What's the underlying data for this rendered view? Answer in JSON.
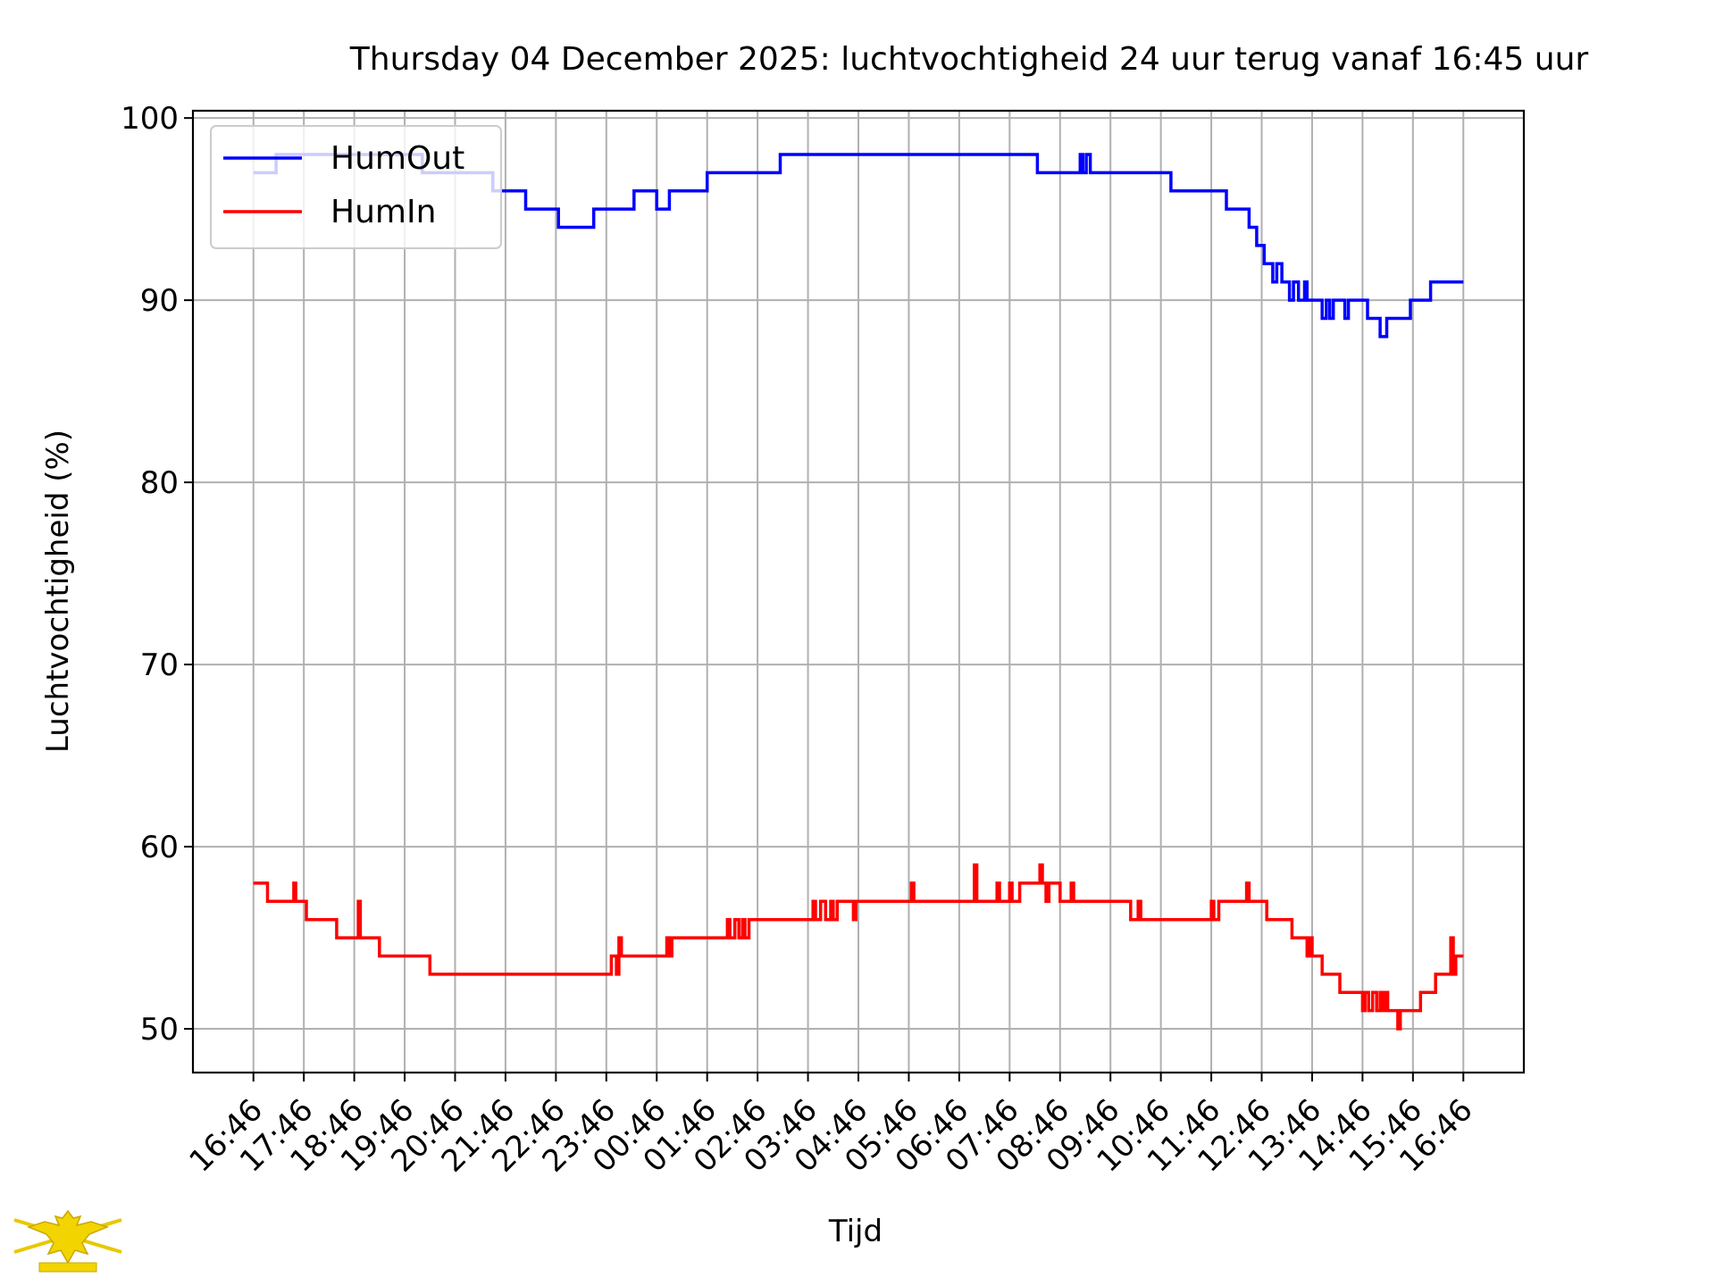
{
  "chart_data": {
    "type": "line",
    "title": "Thursday 04 December 2025: luchtvochtigheid 24 uur terug vanaf 16:45 uur",
    "xlabel": "Tijd",
    "ylabel": "Luchtvochtigheid (%)",
    "x_tick_labels": [
      "16:46",
      "17:46",
      "18:46",
      "19:46",
      "20:46",
      "21:46",
      "22:46",
      "23:46",
      "00:46",
      "01:46",
      "02:46",
      "03:46",
      "04:46",
      "05:46",
      "06:46",
      "07:46",
      "08:46",
      "09:46",
      "10:46",
      "11:46",
      "12:46",
      "13:46",
      "14:46",
      "15:46",
      "16:46"
    ],
    "x_unit": "hours since 16:46",
    "xlim": [
      -1.2,
      25.2
    ],
    "ylim": [
      47.6,
      100.4
    ],
    "y_ticks": [
      50,
      60,
      70,
      80,
      90,
      100
    ],
    "grid": true,
    "legend_position": "upper-left",
    "series": [
      {
        "name": "HumOut",
        "color": "#0000ff",
        "points": [
          [
            0.0,
            97
          ],
          [
            0.45,
            97
          ],
          [
            0.45,
            98
          ],
          [
            3.35,
            98
          ],
          [
            3.35,
            97
          ],
          [
            4.75,
            97
          ],
          [
            4.75,
            96
          ],
          [
            5.4,
            96
          ],
          [
            5.4,
            95
          ],
          [
            6.05,
            95
          ],
          [
            6.05,
            94
          ],
          [
            6.75,
            94
          ],
          [
            6.75,
            95
          ],
          [
            7.55,
            95
          ],
          [
            7.55,
            96
          ],
          [
            8.0,
            96
          ],
          [
            8.0,
            95
          ],
          [
            8.25,
            95
          ],
          [
            8.25,
            96
          ],
          [
            9.0,
            96
          ],
          [
            9.0,
            97
          ],
          [
            10.45,
            97
          ],
          [
            10.45,
            98
          ],
          [
            15.55,
            98
          ],
          [
            15.55,
            97
          ],
          [
            16.4,
            97
          ],
          [
            16.4,
            98
          ],
          [
            16.45,
            98
          ],
          [
            16.45,
            97
          ],
          [
            16.52,
            97
          ],
          [
            16.52,
            98
          ],
          [
            16.6,
            98
          ],
          [
            16.6,
            97
          ],
          [
            18.2,
            97
          ],
          [
            18.2,
            96
          ],
          [
            19.3,
            96
          ],
          [
            19.3,
            95
          ],
          [
            19.75,
            95
          ],
          [
            19.75,
            94
          ],
          [
            19.9,
            94
          ],
          [
            19.9,
            93
          ],
          [
            20.05,
            93
          ],
          [
            20.05,
            92
          ],
          [
            20.22,
            92
          ],
          [
            20.22,
            91
          ],
          [
            20.3,
            91
          ],
          [
            20.3,
            92
          ],
          [
            20.4,
            92
          ],
          [
            20.4,
            91
          ],
          [
            20.55,
            91
          ],
          [
            20.55,
            90
          ],
          [
            20.63,
            90
          ],
          [
            20.63,
            91
          ],
          [
            20.73,
            91
          ],
          [
            20.73,
            90
          ],
          [
            20.85,
            90
          ],
          [
            20.85,
            91
          ],
          [
            20.9,
            91
          ],
          [
            20.9,
            90
          ],
          [
            21.2,
            90
          ],
          [
            21.2,
            89
          ],
          [
            21.28,
            89
          ],
          [
            21.28,
            90
          ],
          [
            21.35,
            90
          ],
          [
            21.35,
            89
          ],
          [
            21.42,
            89
          ],
          [
            21.42,
            90
          ],
          [
            21.65,
            90
          ],
          [
            21.65,
            89
          ],
          [
            21.72,
            89
          ],
          [
            21.72,
            90
          ],
          [
            22.1,
            90
          ],
          [
            22.1,
            89
          ],
          [
            22.35,
            89
          ],
          [
            22.35,
            88
          ],
          [
            22.48,
            88
          ],
          [
            22.48,
            89
          ],
          [
            22.95,
            89
          ],
          [
            22.95,
            90
          ],
          [
            23.35,
            90
          ],
          [
            23.35,
            91
          ],
          [
            24.0,
            91
          ]
        ]
      },
      {
        "name": "HumIn",
        "color": "#ff0000",
        "points": [
          [
            0.0,
            58
          ],
          [
            0.28,
            58
          ],
          [
            0.28,
            57
          ],
          [
            0.8,
            57
          ],
          [
            0.8,
            58
          ],
          [
            0.84,
            58
          ],
          [
            0.84,
            57
          ],
          [
            1.05,
            57
          ],
          [
            1.05,
            56
          ],
          [
            1.65,
            56
          ],
          [
            1.65,
            55
          ],
          [
            2.08,
            55
          ],
          [
            2.08,
            57
          ],
          [
            2.12,
            57
          ],
          [
            2.12,
            55
          ],
          [
            2.5,
            55
          ],
          [
            2.5,
            54
          ],
          [
            3.5,
            54
          ],
          [
            3.5,
            53
          ],
          [
            7.1,
            53
          ],
          [
            7.1,
            54
          ],
          [
            7.2,
            54
          ],
          [
            7.2,
            53
          ],
          [
            7.25,
            53
          ],
          [
            7.25,
            55
          ],
          [
            7.3,
            55
          ],
          [
            7.3,
            54
          ],
          [
            8.2,
            54
          ],
          [
            8.2,
            55
          ],
          [
            8.25,
            55
          ],
          [
            8.25,
            54
          ],
          [
            8.3,
            54
          ],
          [
            8.3,
            55
          ],
          [
            9.4,
            55
          ],
          [
            9.4,
            56
          ],
          [
            9.45,
            56
          ],
          [
            9.45,
            55
          ],
          [
            9.55,
            55
          ],
          [
            9.55,
            56
          ],
          [
            9.63,
            56
          ],
          [
            9.63,
            55
          ],
          [
            9.7,
            55
          ],
          [
            9.7,
            56
          ],
          [
            9.75,
            56
          ],
          [
            9.75,
            55
          ],
          [
            9.83,
            55
          ],
          [
            9.83,
            56
          ],
          [
            11.1,
            56
          ],
          [
            11.1,
            57
          ],
          [
            11.15,
            57
          ],
          [
            11.15,
            56
          ],
          [
            11.25,
            56
          ],
          [
            11.25,
            57
          ],
          [
            11.35,
            57
          ],
          [
            11.35,
            56
          ],
          [
            11.45,
            56
          ],
          [
            11.45,
            57
          ],
          [
            11.5,
            57
          ],
          [
            11.5,
            56
          ],
          [
            11.58,
            56
          ],
          [
            11.58,
            57
          ],
          [
            11.9,
            57
          ],
          [
            11.9,
            56
          ],
          [
            11.95,
            56
          ],
          [
            11.95,
            57
          ],
          [
            13.05,
            57
          ],
          [
            13.05,
            58
          ],
          [
            13.1,
            58
          ],
          [
            13.1,
            57
          ],
          [
            14.3,
            57
          ],
          [
            14.3,
            59
          ],
          [
            14.35,
            59
          ],
          [
            14.35,
            57
          ],
          [
            14.75,
            57
          ],
          [
            14.75,
            58
          ],
          [
            14.8,
            58
          ],
          [
            14.8,
            57
          ],
          [
            15.0,
            57
          ],
          [
            15.0,
            58
          ],
          [
            15.05,
            58
          ],
          [
            15.05,
            57
          ],
          [
            15.2,
            57
          ],
          [
            15.2,
            58
          ],
          [
            15.6,
            58
          ],
          [
            15.6,
            59
          ],
          [
            15.65,
            59
          ],
          [
            15.65,
            58
          ],
          [
            15.72,
            58
          ],
          [
            15.72,
            57
          ],
          [
            15.78,
            57
          ],
          [
            15.78,
            58
          ],
          [
            16.0,
            58
          ],
          [
            16.0,
            57
          ],
          [
            16.22,
            57
          ],
          [
            16.22,
            58
          ],
          [
            16.27,
            58
          ],
          [
            16.27,
            57
          ],
          [
            17.4,
            57
          ],
          [
            17.4,
            56
          ],
          [
            17.55,
            56
          ],
          [
            17.55,
            57
          ],
          [
            17.6,
            57
          ],
          [
            17.6,
            56
          ],
          [
            19.0,
            56
          ],
          [
            19.0,
            57
          ],
          [
            19.05,
            57
          ],
          [
            19.05,
            56
          ],
          [
            19.15,
            56
          ],
          [
            19.15,
            57
          ],
          [
            19.7,
            57
          ],
          [
            19.7,
            58
          ],
          [
            19.75,
            58
          ],
          [
            19.75,
            57
          ],
          [
            20.1,
            57
          ],
          [
            20.1,
            56
          ],
          [
            20.6,
            56
          ],
          [
            20.6,
            55
          ],
          [
            20.9,
            55
          ],
          [
            20.9,
            54
          ],
          [
            20.95,
            54
          ],
          [
            20.95,
            55
          ],
          [
            21.0,
            55
          ],
          [
            21.0,
            54
          ],
          [
            21.2,
            54
          ],
          [
            21.2,
            53
          ],
          [
            21.55,
            53
          ],
          [
            21.55,
            52
          ],
          [
            22.0,
            52
          ],
          [
            22.0,
            51
          ],
          [
            22.05,
            51
          ],
          [
            22.05,
            52
          ],
          [
            22.12,
            52
          ],
          [
            22.12,
            51
          ],
          [
            22.2,
            51
          ],
          [
            22.2,
            52
          ],
          [
            22.28,
            52
          ],
          [
            22.28,
            51
          ],
          [
            22.35,
            51
          ],
          [
            22.35,
            52
          ],
          [
            22.4,
            52
          ],
          [
            22.4,
            51
          ],
          [
            22.45,
            51
          ],
          [
            22.45,
            52
          ],
          [
            22.5,
            52
          ],
          [
            22.5,
            51
          ],
          [
            22.7,
            51
          ],
          [
            22.7,
            50
          ],
          [
            22.75,
            50
          ],
          [
            22.75,
            51
          ],
          [
            23.15,
            51
          ],
          [
            23.15,
            52
          ],
          [
            23.45,
            52
          ],
          [
            23.45,
            53
          ],
          [
            23.75,
            53
          ],
          [
            23.75,
            55
          ],
          [
            23.8,
            55
          ],
          [
            23.8,
            53
          ],
          [
            23.85,
            53
          ],
          [
            23.85,
            54
          ],
          [
            24.0,
            54
          ]
        ]
      }
    ]
  }
}
